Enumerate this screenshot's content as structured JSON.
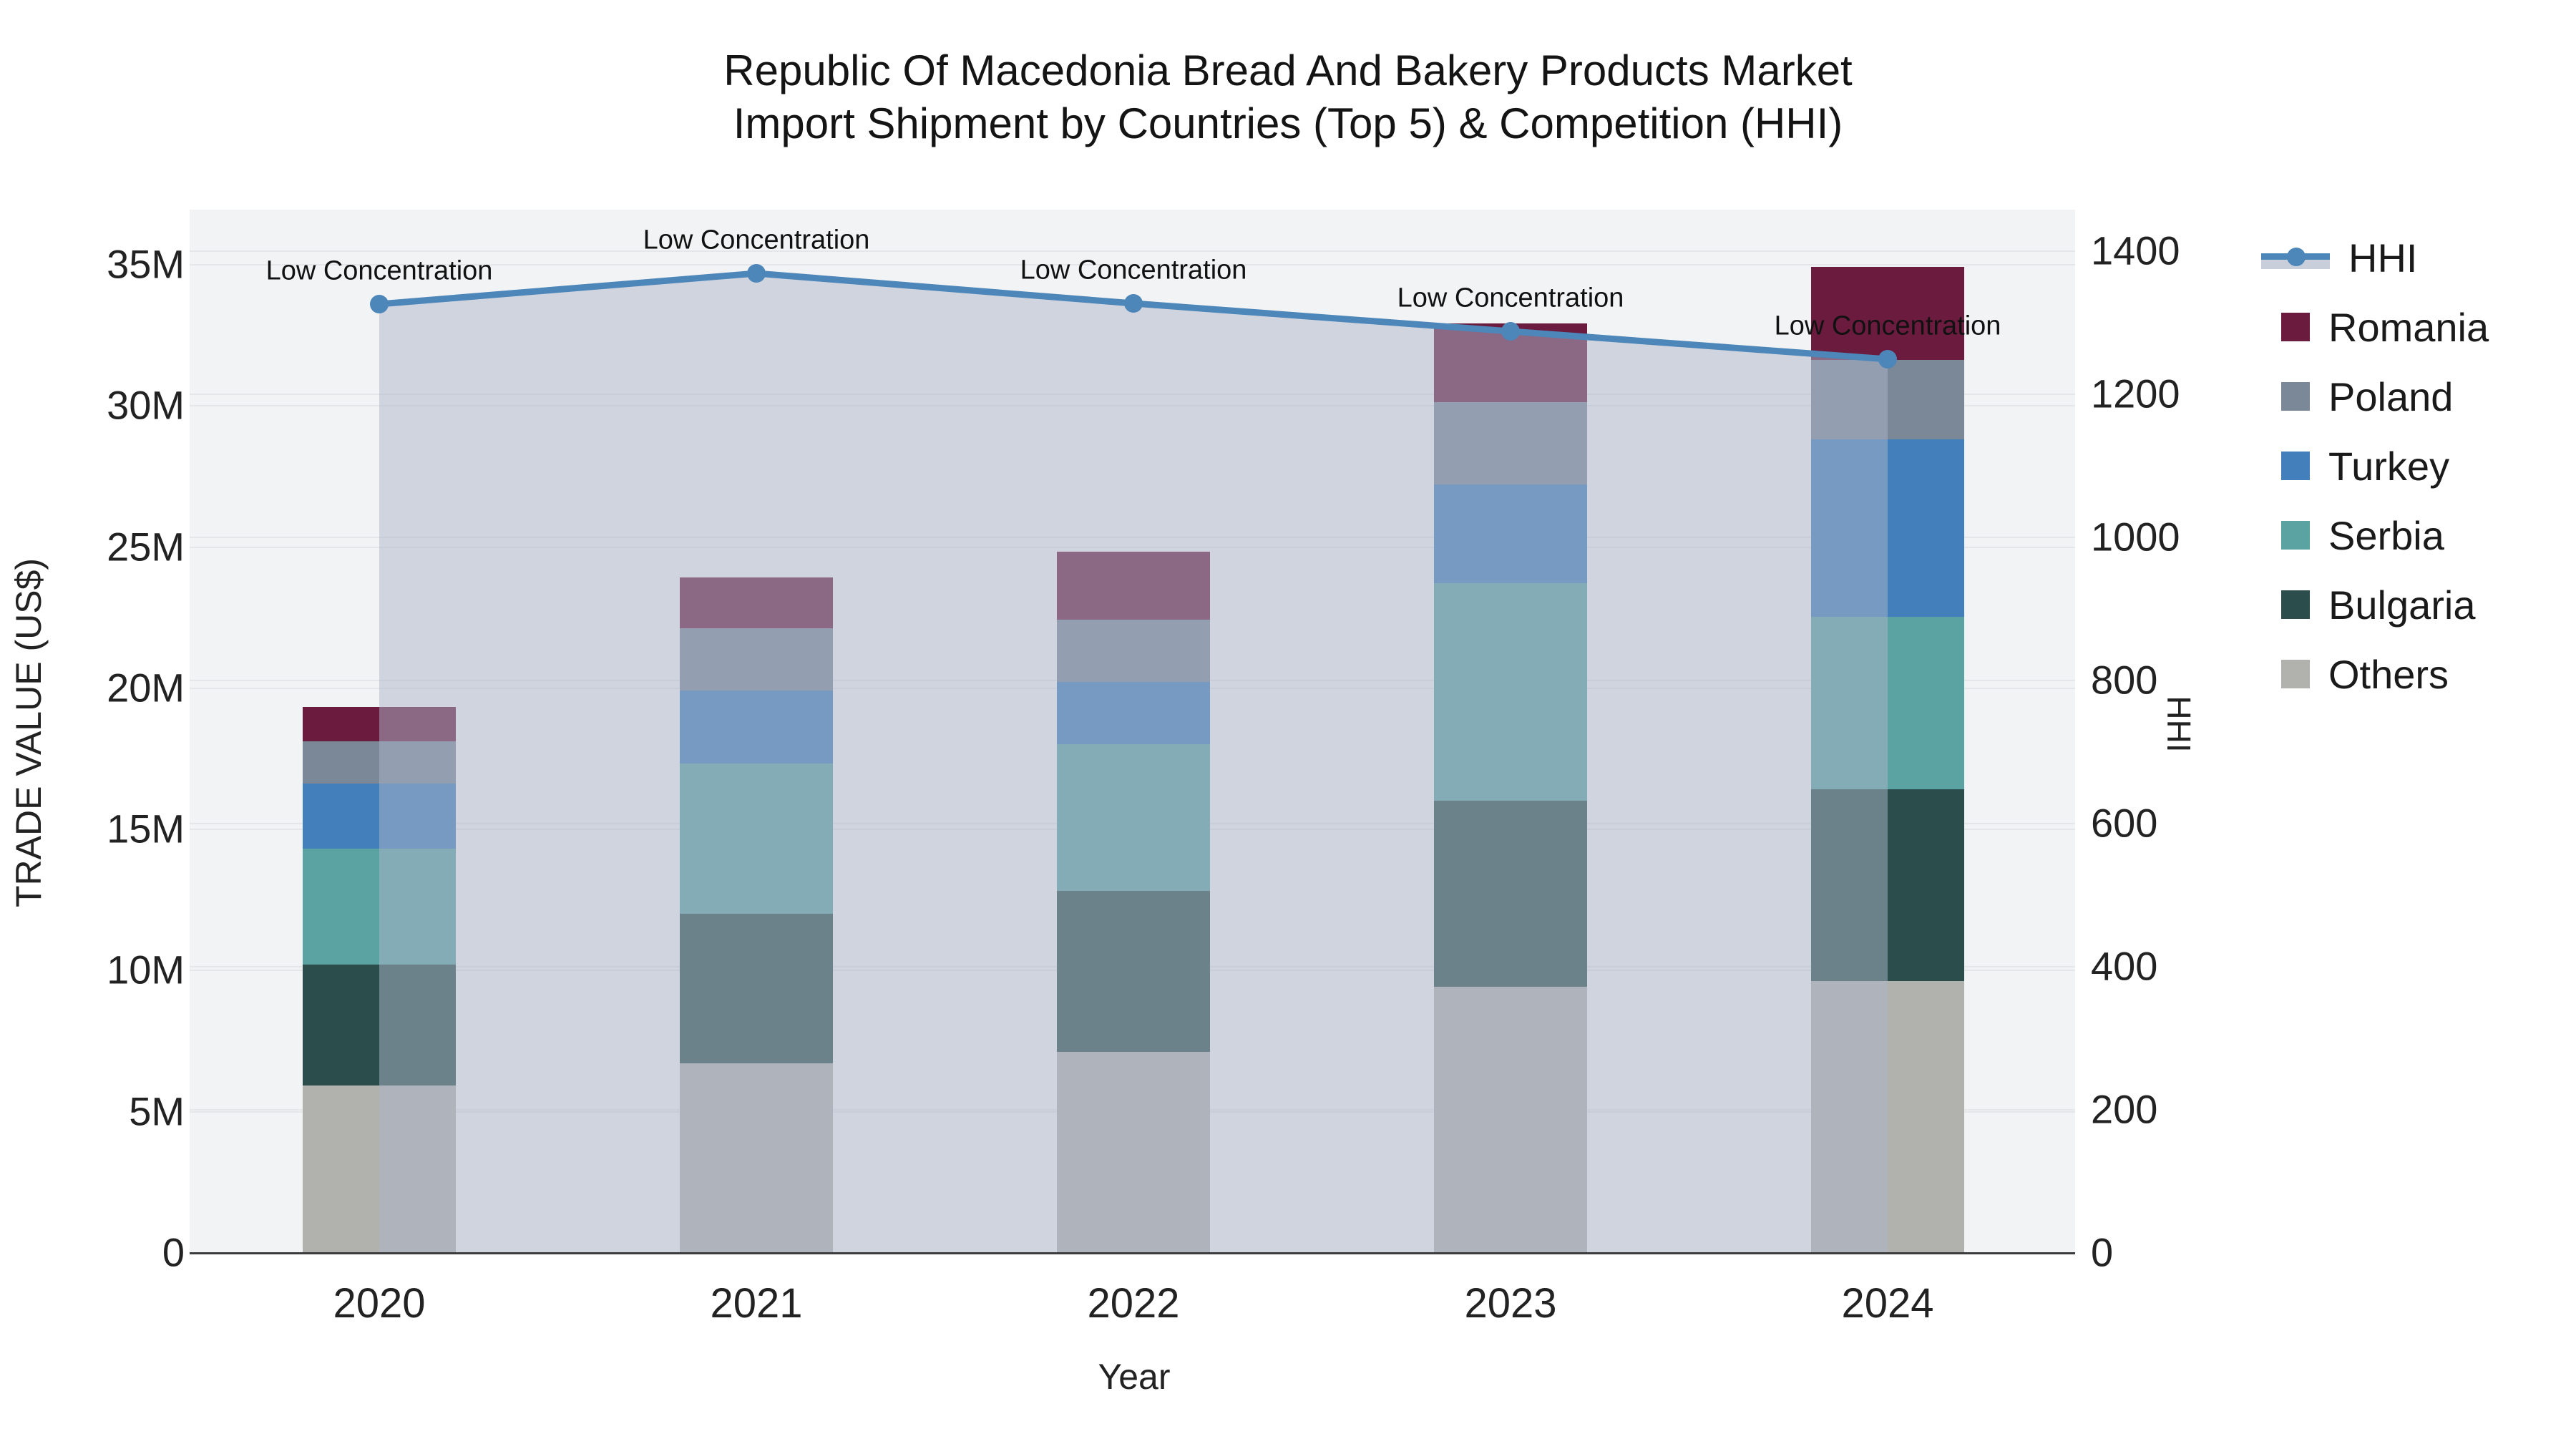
{
  "title_line1": "Republic Of Macedonia Bread And Bakery Products Market",
  "title_line2": "Import Shipment by Countries (Top 5) & Competition (HHI)",
  "chart_data": {
    "type": "combo-stacked-bar-and-line",
    "x": [
      "2020",
      "2021",
      "2022",
      "2023",
      "2024"
    ],
    "x_title": "Year",
    "y_left": {
      "title": "TRADE VALUE (US$)",
      "ticks": [
        "0",
        "5M",
        "10M",
        "15M",
        "20M",
        "25M",
        "30M",
        "35M"
      ],
      "max_million_usd": 35,
      "grid": true
    },
    "y_right": {
      "title": "HHI",
      "ticks": [
        "0",
        "200",
        "400",
        "600",
        "800",
        "1000",
        "1200",
        "1400"
      ],
      "max": 1400,
      "grid": true
    },
    "bar_series_bottom_to_top": [
      {
        "name": "Others",
        "color": "#b1b1ae",
        "values_million_usd": [
          5.9,
          6.7,
          7.1,
          9.4,
          9.6
        ]
      },
      {
        "name": "Bulgaria",
        "color": "#2b4e4c",
        "values_million_usd": [
          4.3,
          5.3,
          5.7,
          6.6,
          6.8
        ]
      },
      {
        "name": "Serbia",
        "color": "#5ba3a3",
        "values_million_usd": [
          4.1,
          5.3,
          5.2,
          7.7,
          6.1
        ]
      },
      {
        "name": "Turkey",
        "color": "#437fba",
        "values_million_usd": [
          2.3,
          2.6,
          2.2,
          3.5,
          6.3
        ]
      },
      {
        "name": "Poland",
        "color": "#7b8898",
        "values_million_usd": [
          1.5,
          2.2,
          2.2,
          2.9,
          2.8
        ]
      },
      {
        "name": "Romania",
        "color": "#6b1b3d",
        "values_million_usd": [
          1.2,
          1.8,
          2.4,
          2.8,
          3.3
        ]
      }
    ],
    "bar_totals_million_usd": [
      19.3,
      23.9,
      24.8,
      32.9,
      34.9
    ],
    "line_series": {
      "name": "HHI",
      "color": "#4d86b9",
      "area_fill": "rgba(172,182,202,0.5)",
      "values": [
        1325,
        1368,
        1326,
        1287,
        1248
      ]
    },
    "annotations": [
      "Low Concentration",
      "Low Concentration",
      "Low Concentration",
      "Low Concentration",
      "Low Concentration"
    ]
  },
  "legend": {
    "items": [
      {
        "label": "HHI",
        "type": "line",
        "color": "#4d86b9",
        "band": "#c9cfda"
      },
      {
        "label": "Romania",
        "type": "swatch",
        "color": "#6b1b3d"
      },
      {
        "label": "Poland",
        "type": "swatch",
        "color": "#7b8898"
      },
      {
        "label": "Turkey",
        "type": "swatch",
        "color": "#437fba"
      },
      {
        "label": "Serbia",
        "type": "swatch",
        "color": "#5ba3a3"
      },
      {
        "label": "Bulgaria",
        "type": "swatch",
        "color": "#2b4e4c"
      },
      {
        "label": "Others",
        "type": "swatch",
        "color": "#b1b1ae"
      }
    ]
  },
  "colors": {
    "plot_background": "#f2f3f4",
    "page_background": "#ffffff",
    "gridline": "#e4e6e9",
    "axis_line": "#3c3c3c",
    "hhi_line": "#4d86b9",
    "hhi_area": "#c9cfda"
  }
}
